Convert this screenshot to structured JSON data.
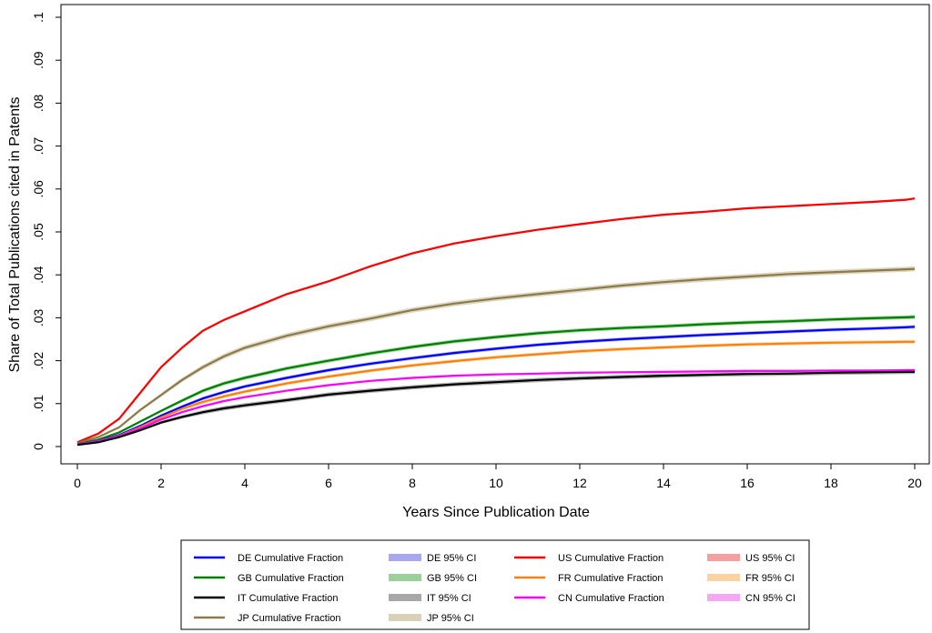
{
  "chart_data": {
    "type": "line",
    "xlabel": "Years Since Publication Date",
    "ylabel": "Share of Total Publications cited in Patents",
    "xlim": [
      0,
      20
    ],
    "ylim": [
      0,
      0.1
    ],
    "x_ticks": [
      0,
      2,
      4,
      6,
      8,
      10,
      12,
      14,
      16,
      18,
      20
    ],
    "x_tick_labels": [
      "0",
      "2",
      "4",
      "6",
      "8",
      "10",
      "12",
      "14",
      "16",
      "18",
      "20"
    ],
    "y_ticks": [
      0,
      0.01,
      0.02,
      0.03,
      0.04,
      0.05,
      0.06,
      0.07,
      0.08,
      0.09,
      0.1
    ],
    "y_tick_labels": [
      "0",
      ".01",
      ".02",
      ".03",
      ".04",
      ".05",
      ".06",
      ".07",
      ".08",
      ".09",
      ".1"
    ],
    "grid": false,
    "legend_position": "bottom",
    "x": [
      0,
      0.5,
      1,
      1.5,
      2,
      2.5,
      3,
      3.5,
      4,
      5,
      6,
      7,
      8,
      9,
      10,
      11,
      12,
      13,
      14,
      15,
      16,
      17,
      18,
      19,
      19.8,
      20
    ],
    "series": [
      {
        "name": "US Cumulative Fraction",
        "color": "#ff0000",
        "ci_color": "#f4a0a0",
        "values": [
          0.001,
          0.003,
          0.0065,
          0.0125,
          0.0185,
          0.023,
          0.027,
          0.0295,
          0.0315,
          0.0355,
          0.0385,
          0.042,
          0.045,
          0.0473,
          0.049,
          0.0505,
          0.0518,
          0.053,
          0.054,
          0.0547,
          0.0555,
          0.056,
          0.0565,
          0.057,
          0.0575,
          0.0578
        ]
      },
      {
        "name": "JP Cumulative Fraction",
        "color": "#8c7a4a",
        "ci_color": "#d8d1b8",
        "values": [
          0.0008,
          0.0022,
          0.0045,
          0.0085,
          0.012,
          0.0155,
          0.0185,
          0.021,
          0.023,
          0.0258,
          0.028,
          0.0298,
          0.0318,
          0.0333,
          0.0345,
          0.0355,
          0.0365,
          0.0375,
          0.0383,
          0.039,
          0.0396,
          0.0402,
          0.0406,
          0.041,
          0.0413,
          0.0414
        ]
      },
      {
        "name": "GB Cumulative Fraction",
        "color": "#008000",
        "ci_color": "#9ccf9c",
        "values": [
          0.0006,
          0.0016,
          0.0033,
          0.0058,
          0.0083,
          0.0107,
          0.013,
          0.0147,
          0.016,
          0.0182,
          0.02,
          0.0217,
          0.0232,
          0.0245,
          0.0255,
          0.0264,
          0.0271,
          0.0276,
          0.028,
          0.0285,
          0.0289,
          0.0292,
          0.0296,
          0.0299,
          0.0301,
          0.0302
        ]
      },
      {
        "name": "DE Cumulative Fraction",
        "color": "#0000ff",
        "ci_color": "#a8a8f0",
        "values": [
          0.0005,
          0.0013,
          0.0027,
          0.0048,
          0.0072,
          0.0093,
          0.0112,
          0.0127,
          0.014,
          0.016,
          0.0178,
          0.0193,
          0.0206,
          0.0218,
          0.0228,
          0.0237,
          0.0244,
          0.025,
          0.0255,
          0.026,
          0.0264,
          0.0268,
          0.0272,
          0.0275,
          0.0278,
          0.0279
        ]
      },
      {
        "name": "FR Cumulative Fraction",
        "color": "#ff7f0e",
        "ci_color": "#fcd3a0",
        "values": [
          0.0005,
          0.0012,
          0.0025,
          0.0045,
          0.0068,
          0.0088,
          0.0104,
          0.0117,
          0.0128,
          0.0147,
          0.0163,
          0.0177,
          0.0189,
          0.0199,
          0.0208,
          0.0215,
          0.0222,
          0.0227,
          0.0231,
          0.0235,
          0.0238,
          0.024,
          0.0242,
          0.0243,
          0.0244,
          0.0244
        ]
      },
      {
        "name": "CN Cumulative Fraction",
        "color": "#ff00ff",
        "ci_color": "#f4a8f4",
        "values": [
          0.0005,
          0.0012,
          0.0024,
          0.0042,
          0.0063,
          0.008,
          0.0094,
          0.0106,
          0.0115,
          0.013,
          0.0143,
          0.0153,
          0.016,
          0.0165,
          0.0168,
          0.017,
          0.0172,
          0.0173,
          0.0174,
          0.0175,
          0.0176,
          0.0176,
          0.0177,
          0.0177,
          0.0178,
          0.0178
        ]
      },
      {
        "name": "IT Cumulative Fraction",
        "color": "#000000",
        "ci_color": "#a8a8a8",
        "values": [
          0.0004,
          0.001,
          0.0022,
          0.0038,
          0.0056,
          0.0069,
          0.008,
          0.0089,
          0.0096,
          0.0108,
          0.0121,
          0.013,
          0.0138,
          0.0145,
          0.015,
          0.0155,
          0.0159,
          0.0162,
          0.0165,
          0.0167,
          0.0169,
          0.017,
          0.0172,
          0.0173,
          0.0174,
          0.0174
        ]
      }
    ],
    "legend": [
      {
        "label": "DE Cumulative Fraction",
        "color": "#0000ff",
        "kind": "line"
      },
      {
        "label": "DE 95% CI",
        "color": "#a8a8f0",
        "kind": "band"
      },
      {
        "label": "US Cumulative Fraction",
        "color": "#ff0000",
        "kind": "line"
      },
      {
        "label": "US 95% CI",
        "color": "#f4a0a0",
        "kind": "band"
      },
      {
        "label": "GB Cumulative Fraction",
        "color": "#008000",
        "kind": "line"
      },
      {
        "label": "GB 95% CI",
        "color": "#9ccf9c",
        "kind": "band"
      },
      {
        "label": "FR Cumulative Fraction",
        "color": "#ff7f0e",
        "kind": "line"
      },
      {
        "label": "FR 95% CI",
        "color": "#fcd3a0",
        "kind": "band"
      },
      {
        "label": "IT Cumulative Fraction",
        "color": "#000000",
        "kind": "line"
      },
      {
        "label": "IT 95% CI",
        "color": "#a8a8a8",
        "kind": "band"
      },
      {
        "label": "CN Cumulative Fraction",
        "color": "#ff00ff",
        "kind": "line"
      },
      {
        "label": "CN 95% CI",
        "color": "#f4a8f4",
        "kind": "band"
      },
      {
        "label": "JP Cumulative Fraction",
        "color": "#8c7a4a",
        "kind": "line"
      },
      {
        "label": "JP 95% CI",
        "color": "#d8d1b8",
        "kind": "band"
      }
    ]
  }
}
